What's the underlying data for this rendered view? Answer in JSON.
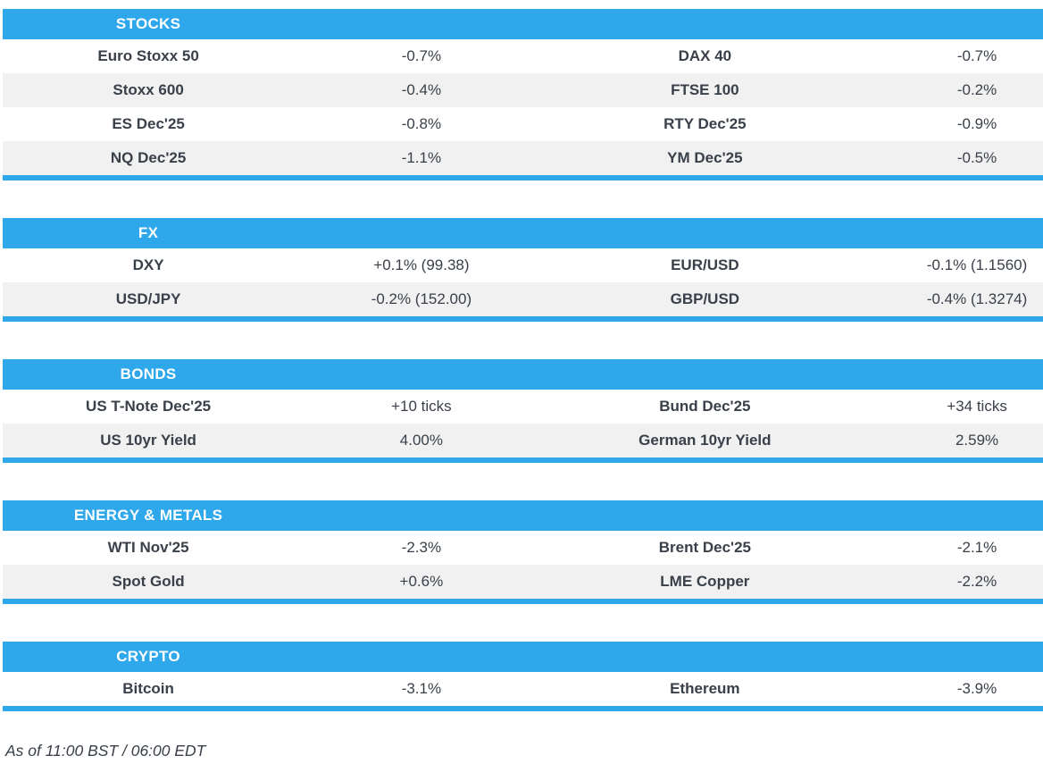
{
  "colors": {
    "accent": "#2FA8EB",
    "row_alt": "#F1F1F2",
    "text": "#3A4049",
    "header_text": "#FFFFFF"
  },
  "sections": {
    "stocks": {
      "title": "STOCKS",
      "rows": [
        {
          "c0": "Euro Stoxx 50",
          "c1": "-0.7%",
          "c2": "DAX 40",
          "c3": "-0.7%"
        },
        {
          "c0": "Stoxx 600",
          "c1": "-0.4%",
          "c2": "FTSE 100",
          "c3": "-0.2%"
        },
        {
          "c0": "ES Dec'25",
          "c1": "-0.8%",
          "c2": "RTY Dec'25",
          "c3": "-0.9%"
        },
        {
          "c0": "NQ Dec'25",
          "c1": "-1.1%",
          "c2": "YM Dec'25",
          "c3": "-0.5%"
        }
      ]
    },
    "fx": {
      "title": "FX",
      "rows": [
        {
          "c0": "DXY",
          "c1": "+0.1% (99.38)",
          "c2": "EUR/USD",
          "c3": "-0.1% (1.1560)"
        },
        {
          "c0": "USD/JPY",
          "c1": "-0.2% (152.00)",
          "c2": "GBP/USD",
          "c3": "-0.4% (1.3274)"
        }
      ]
    },
    "bonds": {
      "title": "BONDS",
      "rows": [
        {
          "c0": "US T-Note Dec'25",
          "c1": "+10 ticks",
          "c2": "Bund Dec'25",
          "c3": "+34 ticks"
        },
        {
          "c0": "US 10yr Yield",
          "c1": "4.00%",
          "c2": "German 10yr Yield",
          "c3": "2.59%"
        }
      ]
    },
    "energy_metals": {
      "title": "ENERGY & METALS",
      "rows": [
        {
          "c0": "WTI Nov'25",
          "c1": "-2.3%",
          "c2": "Brent Dec'25",
          "c3": "-2.1%"
        },
        {
          "c0": "Spot Gold",
          "c1": "+0.6%",
          "c2": "LME Copper",
          "c3": "-2.2%"
        }
      ]
    },
    "crypto": {
      "title": "CRYPTO",
      "rows": [
        {
          "c0": "Bitcoin",
          "c1": "-3.1%",
          "c2": "Ethereum",
          "c3": "-3.9%"
        }
      ]
    }
  },
  "footer": {
    "as_of": "As of 11:00 BST / 06:00 EDT"
  }
}
